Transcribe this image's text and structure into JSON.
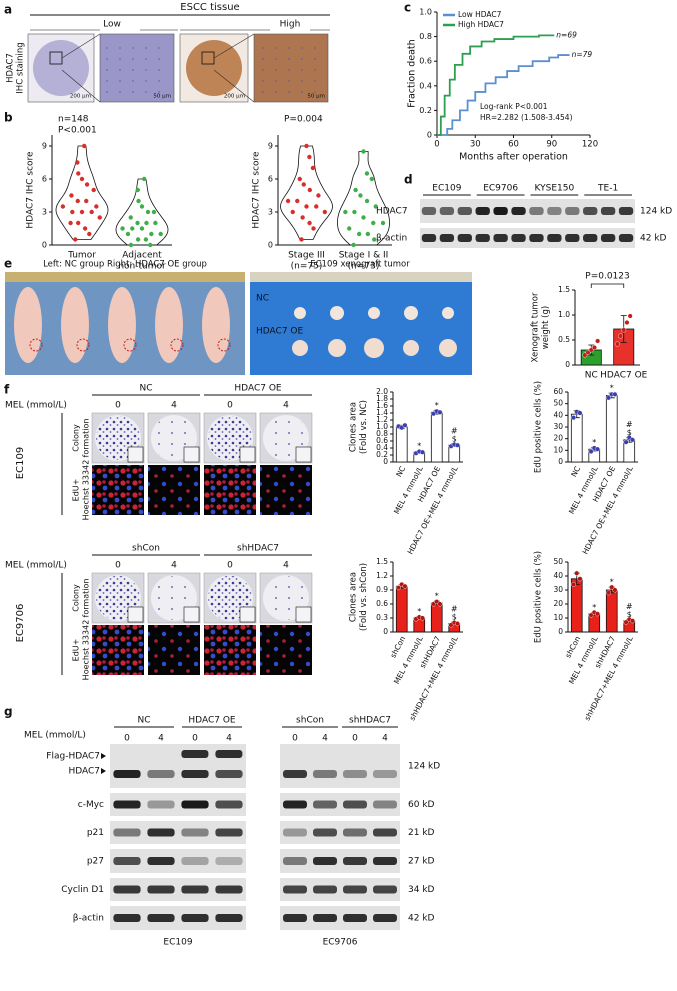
{
  "panel_labels": [
    "a",
    "b",
    "c",
    "d",
    "e",
    "f",
    "g"
  ],
  "panel_a": {
    "title": "ESCC tissue",
    "groups": [
      "Low",
      "High"
    ],
    "side_label": [
      "HDAC7",
      "IHC staining"
    ],
    "scale_bars": [
      "200 μm",
      "50 μm",
      "200 μm",
      "50 μm"
    ]
  },
  "panel_d": {
    "cell_lines": [
      "EC109",
      "EC9706",
      "KYSE150",
      "TE-1"
    ],
    "rows": [
      {
        "label": "HDAC7",
        "size": "124 kD"
      },
      {
        "label": "β-actin",
        "size": "42 kD"
      }
    ]
  },
  "panel_e": {
    "photo_titles": [
      "Left: NC group  Right: HDAC7 OE group",
      "EC109 xenograft tumor"
    ],
    "tumor_rows": [
      "NC",
      "HDAC7 OE"
    ]
  },
  "panel_f": {
    "blocks": [
      {
        "groups": [
          "NC",
          "HDAC7 OE"
        ],
        "dose_label": "MEL (mmol/L)",
        "doses": [
          "0",
          "4",
          "0",
          "4"
        ],
        "cell_line": "EC109",
        "rows": [
          [
            "Colony",
            "formation"
          ],
          [
            "EdU+",
            "Hoechst 33342"
          ]
        ]
      },
      {
        "groups": [
          "shCon",
          "shHDAC7"
        ],
        "dose_label": "MEL (mmol/L)",
        "doses": [
          "0",
          "4",
          "0",
          "4"
        ],
        "cell_line": "EC9706",
        "rows": [
          [
            "Colony",
            "formation"
          ],
          [
            "EdU+",
            "Hoechst 33342"
          ]
        ]
      }
    ]
  },
  "panel_g": {
    "dose_label": "MEL (mmol/L)",
    "groups": [
      "NC",
      "HDAC7 OE",
      "shCon",
      "shHDAC7"
    ],
    "doses": [
      "0",
      "4",
      "0",
      "4",
      "0",
      "4",
      "0",
      "4"
    ],
    "rows": [
      {
        "labels": [
          "Flag-HDAC7",
          "HDAC7"
        ],
        "size": "124 kD"
      },
      {
        "labels": [
          "c-Myc"
        ],
        "size": "60 kD"
      },
      {
        "labels": [
          "p21"
        ],
        "size": "21 kD"
      },
      {
        "labels": [
          "p27"
        ],
        "size": "27 kD"
      },
      {
        "labels": [
          "Cyclin D1"
        ],
        "size": "34 kD"
      },
      {
        "labels": [
          "β-actin"
        ],
        "size": "42 kD"
      }
    ],
    "cell_lines": [
      "EC109",
      "EC9706"
    ]
  },
  "chart_data": [
    {
      "type": "violin",
      "categories": [
        [
          "Tumor"
        ],
        [
          "Adjacent",
          "non-tumor"
        ]
      ],
      "colors": [
        "#d7302a",
        "#3fae49"
      ],
      "values": [
        [
          0.5,
          1,
          1.5,
          2,
          2,
          2.5,
          3,
          3,
          3,
          3.5,
          3.5,
          4,
          4,
          4.5,
          5,
          5.5,
          6,
          6.5,
          7.5,
          9
        ],
        [
          0,
          0,
          0.5,
          0.5,
          1,
          1,
          1,
          1.5,
          1.5,
          1.5,
          2,
          2,
          2,
          2.5,
          3,
          3,
          3.5,
          4,
          5,
          6
        ]
      ],
      "ylim": [
        0,
        10
      ],
      "yticks": [
        0,
        3,
        6,
        9
      ],
      "ylabel": "HDAC7 IHC score",
      "annotations": [
        "n=148",
        "P<0.001"
      ]
    },
    {
      "type": "violin",
      "categories": [
        [
          "Stage III",
          "(n=75)"
        ],
        [
          "Stage I & II",
          "(n=73)"
        ]
      ],
      "colors": [
        "#d7302a",
        "#3fae49"
      ],
      "values": [
        [
          0.5,
          1.5,
          2,
          2.5,
          3,
          3,
          3.5,
          3.5,
          4,
          4,
          4.5,
          5,
          5.5,
          6,
          7,
          8,
          9
        ],
        [
          0,
          0.5,
          1,
          1,
          1.5,
          2,
          2,
          2.5,
          3,
          3,
          3.5,
          4,
          4.5,
          5,
          6,
          6.5,
          8.5
        ]
      ],
      "ylim": [
        0,
        10
      ],
      "yticks": [
        0,
        3,
        6,
        9
      ],
      "ylabel": "HDAC7 IHC score",
      "annotations": [
        "P=0.004"
      ]
    },
    {
      "type": "line",
      "xlabel": "Months after operation",
      "ylabel": "Fraction death",
      "xlim": [
        0,
        120
      ],
      "xticks": [
        0,
        30,
        60,
        90,
        120
      ],
      "ylim": [
        0,
        1
      ],
      "yticks": [
        0,
        0.2,
        0.4,
        0.6,
        0.8,
        {
          "value": 1,
          "label": "1.0"
        }
      ],
      "series": [
        {
          "name": "Low HDAC7",
          "color": "#5b8fd0",
          "label": "n=79",
          "x": [
            0,
            8,
            8,
            12,
            12,
            18,
            18,
            24,
            24,
            30,
            30,
            38,
            38,
            46,
            46,
            55,
            55,
            64,
            64,
            75,
            75,
            88,
            88,
            95,
            95,
            104
          ],
          "values": [
            0,
            0,
            0.05,
            0.05,
            0.12,
            0.12,
            0.2,
            0.2,
            0.28,
            0.28,
            0.35,
            0.35,
            0.42,
            0.42,
            0.47,
            0.47,
            0.52,
            0.52,
            0.56,
            0.56,
            0.6,
            0.6,
            0.63,
            0.63,
            0.65,
            0.65
          ]
        },
        {
          "name": "High HDAC7",
          "color": "#2e9e4f",
          "label": "n=69",
          "x": [
            0,
            3,
            3,
            6,
            6,
            10,
            10,
            14,
            14,
            20,
            20,
            26,
            26,
            35,
            35,
            45,
            45,
            60,
            60,
            80,
            80,
            92
          ],
          "values": [
            0,
            0,
            0.15,
            0.15,
            0.32,
            0.32,
            0.45,
            0.45,
            0.57,
            0.57,
            0.66,
            0.66,
            0.72,
            0.72,
            0.76,
            0.76,
            0.78,
            0.78,
            0.8,
            0.8,
            0.81,
            0.81
          ]
        }
      ],
      "annotations": [
        "Log-rank P<0.001",
        "HR=2.282 (1.508-3.454)"
      ]
    },
    {
      "type": "bar",
      "categories": [
        "NC",
        "HDAC7 OE"
      ],
      "colors": [
        "#2ca02c",
        "#e8312b"
      ],
      "point_color": "#c0201b",
      "values": [
        0.3,
        0.72
      ],
      "errors": [
        0.1,
        0.27
      ],
      "points": [
        [
          0.2,
          0.25,
          0.3,
          0.35,
          0.48
        ],
        [
          0.42,
          0.58,
          0.7,
          0.85,
          0.98
        ]
      ],
      "ylim": [
        0,
        1.5
      ],
      "yticks": [
        0,
        0.5,
        {
          "value": 1,
          "label": "1.0"
        },
        1.5
      ],
      "ylabel": [
        "Xenograft tumor",
        "weight (g)"
      ],
      "annotation": "P=0.0123"
    },
    {
      "type": "bar",
      "categories": [
        "NC",
        "MEL 4 mmol/L",
        "HDAC7 OE",
        "HDAC7 OE+MEL 4 mmol/L"
      ],
      "color": "#ffffff",
      "point_color": "#3b3fae",
      "values": [
        1.0,
        0.28,
        1.42,
        0.48
      ],
      "errors": [
        0.05,
        0.03,
        0.05,
        0.04
      ],
      "points": [
        [
          1.02,
          0.98,
          1.05
        ],
        [
          0.25,
          0.3,
          0.28
        ],
        [
          1.38,
          1.45,
          1.42
        ],
        [
          0.45,
          0.5,
          0.48
        ]
      ],
      "ylim": [
        0,
        2
      ],
      "yticks": [
        0,
        0.2,
        0.4,
        0.6,
        0.8,
        {
          "value": 1,
          "label": "1.0"
        },
        1.2,
        1.4,
        1.6,
        1.8,
        {
          "value": 2,
          "label": "2.0"
        }
      ],
      "ylabel": [
        "Clones area",
        "(Fold vs. NC)"
      ],
      "significance": [
        [],
        [
          "*"
        ],
        [
          "*"
        ],
        [
          "#",
          "$"
        ]
      ]
    },
    {
      "type": "bar",
      "categories": [
        "NC",
        "MEL 4 mmol/L",
        "HDAC7 OE",
        "HDAC7 OE+MEL 4 mmol/L"
      ],
      "color": "#ffffff",
      "point_color": "#3b3fae",
      "values": [
        41,
        11,
        57,
        19
      ],
      "errors": [
        3,
        1.5,
        2,
        2
      ],
      "points": [
        [
          38,
          43,
          42
        ],
        [
          9,
          12,
          11
        ],
        [
          55,
          58,
          58
        ],
        [
          17,
          21,
          19
        ]
      ],
      "ylim": [
        0,
        60
      ],
      "yticks": [
        0,
        10,
        20,
        30,
        40,
        50,
        60
      ],
      "ylabel": [
        "EdU positive cells (%)"
      ],
      "significance": [
        [],
        [
          "*"
        ],
        [
          "*"
        ],
        [
          "#",
          "$"
        ]
      ]
    },
    {
      "type": "bar",
      "categories": [
        "shCon",
        "MEL 4 mmol/L",
        "shHDAC7",
        "shHDAC7+MEL 4 mmol/L"
      ],
      "color": "#e8221b",
      "point_color": "#b01510",
      "values": [
        0.98,
        0.3,
        0.62,
        0.18
      ],
      "errors": [
        0.04,
        0.03,
        0.04,
        0.03
      ],
      "points": [
        [
          0.95,
          1.02,
          0.98
        ],
        [
          0.28,
          0.32,
          0.3
        ],
        [
          0.6,
          0.65,
          0.6
        ],
        [
          0.15,
          0.2,
          0.18
        ]
      ],
      "ylim": [
        0,
        1.5
      ],
      "yticks": [
        0,
        0.3,
        0.6,
        0.9,
        1.2,
        1.5
      ],
      "ylabel": [
        "Clones area",
        "(Fold vs. shCon)"
      ],
      "significance": [
        [],
        [
          "*"
        ],
        [
          "*"
        ],
        [
          "#",
          "$"
        ]
      ]
    },
    {
      "type": "bar",
      "categories": [
        "shCon",
        "MEL 4 mmol/L",
        "shHDAC7",
        "shHDAC7+MEL 4 mmol/L"
      ],
      "color": "#e8221b",
      "point_color": "#b01510",
      "values": [
        38,
        13,
        30,
        8
      ],
      "errors": [
        4,
        1,
        2,
        0.8
      ],
      "points": [
        [
          34,
          42,
          38
        ],
        [
          12,
          14,
          13
        ],
        [
          28,
          32,
          30
        ],
        [
          7,
          9,
          8
        ]
      ],
      "ylim": [
        0,
        50
      ],
      "yticks": [
        0,
        10,
        20,
        30,
        40,
        50
      ],
      "ylabel": [
        "EdU positive cells (%)"
      ],
      "significance": [
        [],
        [
          "*"
        ],
        [
          "*"
        ],
        [
          "#",
          "$"
        ]
      ]
    }
  ]
}
